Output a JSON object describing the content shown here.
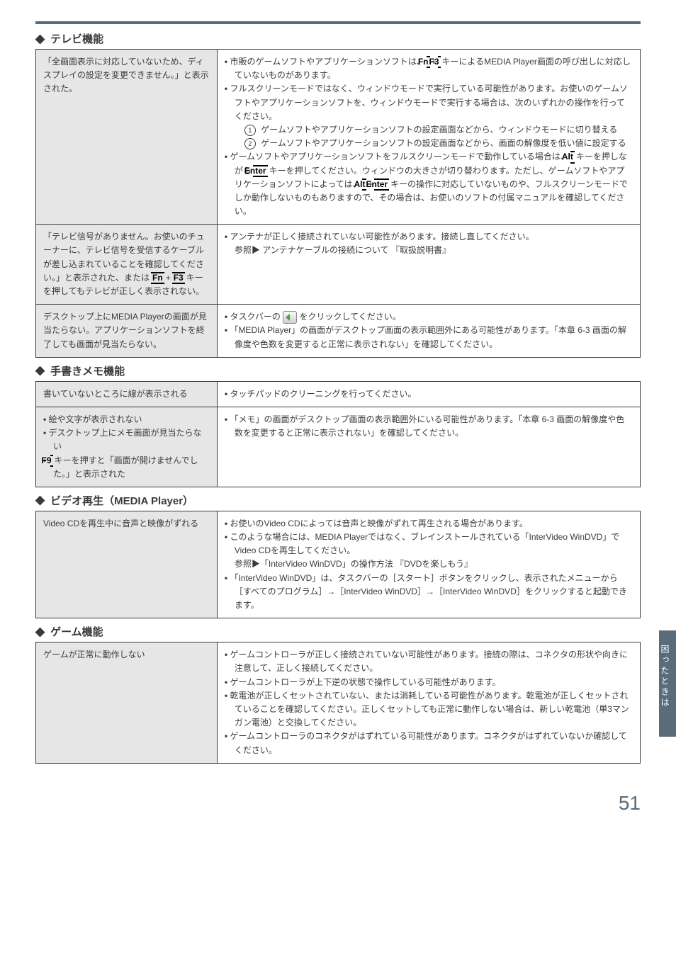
{
  "sections": {
    "tv": {
      "heading": "テレビ機能",
      "rows": [
        {
          "left": "「全画面表示に対応していないため、ディスプレイの設定を変更できません。」と表示された。",
          "right_bullets": [
            {
              "type": "bullet",
              "text": "市販のゲームソフトやアプリケーションソフトは、<span class=\"key\">Fn</span>+<span class=\"key\">F3</span>キーによるMEDIA Player画面の呼び出しに対応していないものがあります。"
            },
            {
              "type": "bullet",
              "text": "フルスクリーンモードではなく、ウィンドウモードで実行している可能性があります。お使いのゲームソフトやアプリケーションソフトを、ウィンドウモードで実行する場合は、次のいずれかの操作を行ってください。"
            },
            {
              "type": "sub",
              "text": "<span class=\"circle-num\">1</span> ゲームソフトやアプリケーションソフトの設定画面などから、ウィンドウモードに切り替える"
            },
            {
              "type": "sub",
              "text": "<span class=\"circle-num\">2</span> ゲームソフトやアプリケーションソフトの設定画面などから、画面の解像度を低い値に設定する"
            },
            {
              "type": "bullet",
              "text": "ゲームソフトやアプリケーションソフトをフルスクリーンモードで動作している場合は、<span class=\"key\">Alt</span>キーを押しながら<span class=\"key\">Enter</span>キーを押してください。ウィンドウの大きさが切り替わります。ただし、ゲームソフトやアプリケーションソフトによっては、<span class=\"key\">Alt</span>+<span class=\"key\">Enter</span>キーの操作に対応していないものや、フルスクリーンモードでしか動作しないものもありますので、その場合は、お使いのソフトの付属マニュアルを確認してください。"
            }
          ]
        },
        {
          "left": "「テレビ信号がありません。お使いのチューナーに、テレビ信号を受信するケーブルが差し込まれていることを確認してください。」と表示された、または<span class=\"key\">Fn</span>+<span class=\"key\">F3</span>キーを押してもテレビが正しく表示されない。",
          "right_bullets": [
            {
              "type": "bullet",
              "text": "アンテナが正しく接続されていない可能性があります。接続し直してください。<br>参照▶ アンテナケーブルの接続について 『取扱説明書』"
            }
          ]
        },
        {
          "left": "デスクトップ上にMEDIA Playerの画面が見当たらない。アプリケーションソフトを終了しても画面が見当たらない。",
          "right_bullets": [
            {
              "type": "bullet",
              "text": "タスクバーの <span class=\"icon-back\"></span> をクリックしてください。"
            },
            {
              "type": "bullet",
              "text": "「MEDIA Player」の画面がデスクトップ画面の表示範囲外にある可能性があります。「本章 6-3 画面の解像度や色数を変更すると正常に表示されない」を確認してください。"
            }
          ]
        }
      ]
    },
    "memo": {
      "heading": "手書きメモ機能",
      "rows": [
        {
          "left": "書いていないところに線が表示される",
          "right_bullets": [
            {
              "type": "bullet",
              "text": "タッチパッドのクリーニングを行ってください。"
            }
          ]
        },
        {
          "left": "<span class=\"bullet\">絵や文字が表示されない</span><span class=\"bullet\">デスクトップ上にメモ画面が見当たらない</span><span class=\"bullet\"><span class=\"key\">F9</span>キーを押すと「画面が開けませんでした。」と表示された</span>",
          "right_bullets": [
            {
              "type": "bullet",
              "text": "「メモ」の画面がデスクトップ画面の表示範囲外にいる可能性があります。「本章 6-3 画面の解像度や色数を変更すると正常に表示されない」を確認してください。"
            }
          ]
        }
      ]
    },
    "video": {
      "heading": "ビデオ再生（MEDIA Player）",
      "rows": [
        {
          "left": "Video CDを再生中に音声と映像がずれる",
          "right_bullets": [
            {
              "type": "bullet",
              "text": "お使いのVideo CDによっては音声と映像がずれて再生される場合があります。"
            },
            {
              "type": "bullet",
              "text": "このような場合には、MEDIA Playerではなく、ブレインストールされている「InterVideo WinDVD」でVideo CDを再生してください。<br>参照▶「InterVideo WinDVD」の操作方法 『DVDを楽しもう』"
            },
            {
              "type": "bullet",
              "text": "「InterVideo WinDVD」は、タスクバーの［スタート］ボタンをクリックし、表示されたメニューから［すべてのプログラム］→［InterVideo WinDVD］→［InterVideo WinDVD］をクリックすると起動できます。"
            }
          ]
        }
      ]
    },
    "game": {
      "heading": "ゲーム機能",
      "rows": [
        {
          "left": "ゲームが正常に動作しない",
          "right_bullets": [
            {
              "type": "bullet",
              "text": "ゲームコントローラが正しく接続されていない可能性があります。接続の際は、コネクタの形状や向きに注意して、正しく接続してください。"
            },
            {
              "type": "bullet",
              "text": "ゲームコントローラが上下逆の状態で操作している可能性があります。"
            },
            {
              "type": "bullet",
              "text": "乾電池が正しくセットされていない、または消耗している可能性があります。乾電池が正しくセットされていることを確認してください。正しくセットしても正常に動作しない場合は、新しい乾電池（単3マンガン電池）と交換してください。"
            },
            {
              "type": "bullet",
              "text": "ゲームコントローラのコネクタがはずれている可能性があります。コネクタがはずれていないか確認してください。"
            }
          ]
        }
      ]
    }
  },
  "sidebar_label": "困ったときは",
  "page_number": "51"
}
